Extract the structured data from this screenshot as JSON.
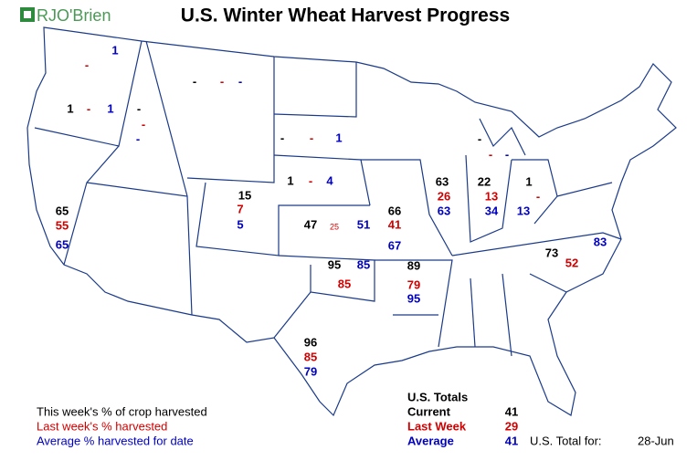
{
  "header": {
    "logo": "RJO'Brien",
    "title": "U.S. Winter Wheat Harvest Progress"
  },
  "states": [
    {
      "last": "-",
      "average": 1
    },
    {
      "current": 1,
      "last": "-",
      "average": 1
    },
    {
      "current": "-",
      "last": "-",
      "average": "-"
    },
    {
      "current": "-",
      "last": "-",
      "average": "-"
    },
    {
      "current": "-",
      "last": "-",
      "average": 1
    },
    {
      "current": 1,
      "last": "-",
      "average": 4
    },
    {
      "current": 15,
      "last": 7,
      "average": 5
    },
    {
      "current": 47,
      "last": 25,
      "average": 51
    },
    {
      "current": 65,
      "last": 55,
      "average": 65
    },
    {
      "current": 66,
      "last": 41,
      "average": 67
    },
    {
      "current": 63,
      "last": 26,
      "average": 63
    },
    {
      "current": 22,
      "last": 13,
      "average": 34
    },
    {
      "current": 1,
      "last": "-",
      "average": 13
    },
    {
      "current": "-",
      "last": "-",
      "average": "-"
    },
    {
      "current": 95,
      "last": 85,
      "average": 85
    },
    {
      "current": 89,
      "last": 79,
      "average": 95
    },
    {
      "current": 96,
      "last": 85,
      "average": 79
    },
    {
      "current": 73,
      "last": 52,
      "average": 83
    }
  ],
  "legend": [
    "This week's % of crop harvested",
    "Last week's % harvested",
    "Average % harvested for date"
  ],
  "totals": {
    "title": "U.S. Totals",
    "rows": [
      {
        "label": "Current",
        "value": 41
      },
      {
        "label": "Last Week",
        "value": 29
      },
      {
        "label": "Average",
        "value": 41
      }
    ],
    "total_for_label": "U.S. Total for:",
    "date": "28-Jun"
  }
}
